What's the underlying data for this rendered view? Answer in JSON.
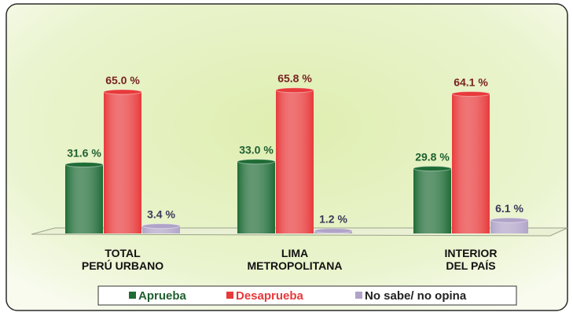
{
  "chart_data": {
    "type": "bar",
    "categories": [
      [
        "TOTAL",
        "PERÚ URBANO"
      ],
      [
        "LIMA",
        "METROPOLITANA"
      ],
      [
        "INTERIOR",
        "DEL PAÍS"
      ]
    ],
    "series": [
      {
        "name": "Aprueba",
        "color": "#1e6b35",
        "values": [
          31.6,
          33.0,
          29.8
        ],
        "value_labels": [
          "31.6 %",
          "33.0 %",
          "29.8 %"
        ]
      },
      {
        "name": "Desaprueba",
        "color": "#e8393a",
        "values": [
          65.0,
          65.8,
          64.1
        ],
        "value_labels": [
          "65.0 %",
          "65.8 %",
          "64.1 %"
        ]
      },
      {
        "name": "No sabe/ no opina",
        "color": "#b0a3c8",
        "values": [
          3.4,
          1.2,
          6.1
        ],
        "value_labels": [
          "3.4 %",
          "1.2 %",
          "6.1 %"
        ]
      }
    ]
  }
}
